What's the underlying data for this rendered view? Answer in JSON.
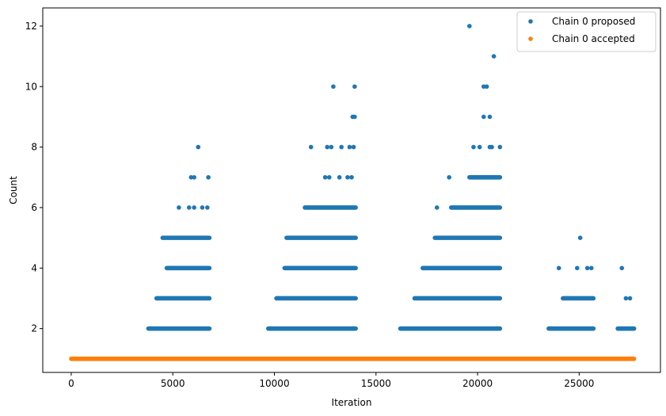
{
  "chart_data": {
    "type": "scatter",
    "title": "",
    "xlabel": "Iteration",
    "ylabel": "Count",
    "xlim": [
      -1400,
      29000
    ],
    "ylim": [
      0.55,
      12.6
    ],
    "x_ticks": [
      0,
      5000,
      10000,
      15000,
      20000,
      25000
    ],
    "y_ticks": [
      2,
      4,
      6,
      8,
      10,
      12
    ],
    "x_tick_labels": [
      "0",
      "5000",
      "10000",
      "15000",
      "20000",
      "25000"
    ],
    "y_tick_labels": [
      "2",
      "4",
      "6",
      "8",
      "10",
      "12"
    ],
    "legend_position": "top-right",
    "grid": false,
    "series": [
      {
        "name": "Chain 0 proposed",
        "color": "#1f77b4",
        "segments": [
          {
            "x_start": 3800,
            "x_end": 6800,
            "y": 2
          },
          {
            "x_start": 4200,
            "x_end": 6800,
            "y": 3
          },
          {
            "x_start": 4700,
            "x_end": 6800,
            "y": 4
          },
          {
            "x_start": 4500,
            "x_end": 6800,
            "y": 5
          },
          {
            "x_start": 9700,
            "x_end": 14000,
            "y": 2
          },
          {
            "x_start": 10100,
            "x_end": 14000,
            "y": 3
          },
          {
            "x_start": 10500,
            "x_end": 14000,
            "y": 4
          },
          {
            "x_start": 10600,
            "x_end": 14000,
            "y": 5
          },
          {
            "x_start": 11500,
            "x_end": 14000,
            "y": 6
          },
          {
            "x_start": 16200,
            "x_end": 21100,
            "y": 2
          },
          {
            "x_start": 16900,
            "x_end": 21100,
            "y": 3
          },
          {
            "x_start": 17300,
            "x_end": 21100,
            "y": 4
          },
          {
            "x_start": 17900,
            "x_end": 21100,
            "y": 5
          },
          {
            "x_start": 18700,
            "x_end": 21100,
            "y": 6
          },
          {
            "x_start": 19600,
            "x_end": 21100,
            "y": 7
          },
          {
            "x_start": 23500,
            "x_end": 25700,
            "y": 2
          },
          {
            "x_start": 24200,
            "x_end": 25700,
            "y": 3
          },
          {
            "x_start": 26900,
            "x_end": 27700,
            "y": 2
          }
        ],
        "points": [
          {
            "x": 5300,
            "y": 6
          },
          {
            "x": 5800,
            "y": 6
          },
          {
            "x": 6050,
            "y": 6
          },
          {
            "x": 6450,
            "y": 6
          },
          {
            "x": 6700,
            "y": 6
          },
          {
            "x": 5900,
            "y": 7
          },
          {
            "x": 6050,
            "y": 7
          },
          {
            "x": 6750,
            "y": 7
          },
          {
            "x": 6250,
            "y": 8
          },
          {
            "x": 12500,
            "y": 7
          },
          {
            "x": 12700,
            "y": 7
          },
          {
            "x": 13200,
            "y": 7
          },
          {
            "x": 13600,
            "y": 7
          },
          {
            "x": 13800,
            "y": 7
          },
          {
            "x": 11800,
            "y": 8
          },
          {
            "x": 12600,
            "y": 8
          },
          {
            "x": 12800,
            "y": 8
          },
          {
            "x": 13300,
            "y": 8
          },
          {
            "x": 13700,
            "y": 8
          },
          {
            "x": 13900,
            "y": 8
          },
          {
            "x": 13850,
            "y": 9
          },
          {
            "x": 13950,
            "y": 9
          },
          {
            "x": 12900,
            "y": 10
          },
          {
            "x": 13950,
            "y": 10
          },
          {
            "x": 18000,
            "y": 6
          },
          {
            "x": 18600,
            "y": 7
          },
          {
            "x": 19800,
            "y": 8
          },
          {
            "x": 20100,
            "y": 8
          },
          {
            "x": 20600,
            "y": 8
          },
          {
            "x": 20700,
            "y": 8
          },
          {
            "x": 21100,
            "y": 8
          },
          {
            "x": 20300,
            "y": 9
          },
          {
            "x": 20600,
            "y": 9
          },
          {
            "x": 20300,
            "y": 10
          },
          {
            "x": 20450,
            "y": 10
          },
          {
            "x": 20800,
            "y": 11
          },
          {
            "x": 19600,
            "y": 12
          },
          {
            "x": 24000,
            "y": 4
          },
          {
            "x": 24900,
            "y": 4
          },
          {
            "x": 25400,
            "y": 4
          },
          {
            "x": 25600,
            "y": 4
          },
          {
            "x": 25050,
            "y": 5
          },
          {
            "x": 27100,
            "y": 4
          },
          {
            "x": 27300,
            "y": 3
          },
          {
            "x": 27500,
            "y": 3
          }
        ]
      },
      {
        "name": "Chain 0 accepted",
        "color": "#ff7f0e",
        "segments": [
          {
            "x_start": 0,
            "x_end": 27700,
            "y": 1
          }
        ],
        "points": []
      }
    ]
  }
}
